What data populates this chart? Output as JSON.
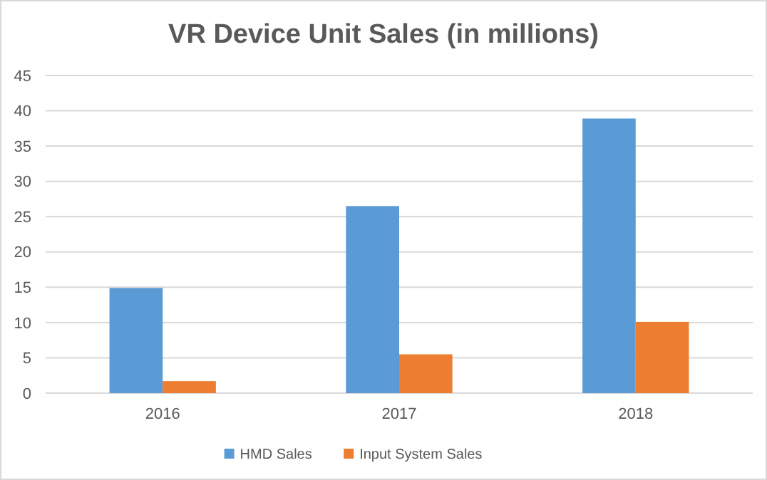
{
  "chart_data": {
    "type": "bar",
    "title": "VR Device Unit Sales (in millions)",
    "categories": [
      "2016",
      "2017",
      "2018"
    ],
    "series": [
      {
        "name": "HMD Sales",
        "color": "#5b9bd5",
        "values": [
          14.9,
          26.5,
          38.9
        ]
      },
      {
        "name": "Input System Sales",
        "color": "#ed7d31",
        "values": [
          1.7,
          5.5,
          10.1
        ]
      }
    ],
    "ylim": [
      0,
      45
    ],
    "yticks": [
      0,
      5,
      10,
      15,
      20,
      25,
      30,
      35,
      40,
      45
    ],
    "grid": "y",
    "legend": "bottom"
  }
}
